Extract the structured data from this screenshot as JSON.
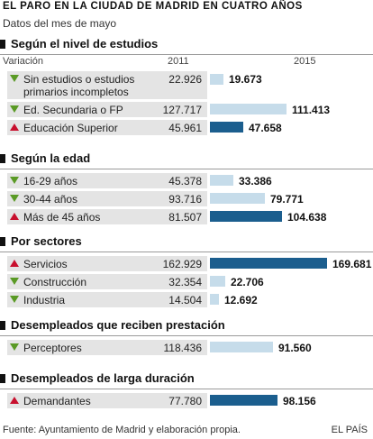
{
  "title": "EL PARO EN LA CIUDAD DE MADRID EN CUATRO AÑOS",
  "subtitle": "Datos del mes de mayo",
  "columns": {
    "variation": "Variación",
    "year1": "2011",
    "year2": "2015"
  },
  "colors": {
    "bar_increase": "#1b5e8e",
    "bar_decrease": "#c6dcea",
    "row_bg": "#e4e4e4",
    "down": "#5a9a25",
    "up": "#c8102e"
  },
  "chart_data": {
    "type": "bar",
    "scale_max": 169681,
    "sections": [
      {
        "label": "Según el nivel de estudios",
        "rows": [
          {
            "name": "Sin estudios o estudios primarios incompletos",
            "trend": "down",
            "v2011_label": "22.926",
            "v2015_label": "19.673",
            "v2011": 22926,
            "v2015": 19673
          },
          {
            "name": "Ed. Secundaria o FP",
            "trend": "down",
            "v2011_label": "127.717",
            "v2015_label": "111.413",
            "v2011": 127717,
            "v2015": 111413
          },
          {
            "name": "Educación Superior",
            "trend": "up",
            "v2011_label": "45.961",
            "v2015_label": "47.658",
            "v2011": 45961,
            "v2015": 47658
          }
        ]
      },
      {
        "label": "Según la edad",
        "rows": [
          {
            "name": "16-29 años",
            "trend": "down",
            "v2011_label": "45.378",
            "v2015_label": "33.386",
            "v2011": 45378,
            "v2015": 33386
          },
          {
            "name": "30-44 años",
            "trend": "down",
            "v2011_label": "93.716",
            "v2015_label": "79.771",
            "v2011": 93716,
            "v2015": 79771
          },
          {
            "name": "Más de 45 años",
            "trend": "up",
            "v2011_label": "81.507",
            "v2015_label": "104.638",
            "v2011": 81507,
            "v2015": 104638
          }
        ]
      },
      {
        "label": "Por sectores",
        "rows": [
          {
            "name": "Servicios",
            "trend": "up",
            "v2011_label": "162.929",
            "v2015_label": "169.681",
            "v2011": 162929,
            "v2015": 169681
          },
          {
            "name": "Construcción",
            "trend": "down",
            "v2011_label": "32.354",
            "v2015_label": "22.706",
            "v2011": 32354,
            "v2015": 22706
          },
          {
            "name": "Industria",
            "trend": "down",
            "v2011_label": "14.504",
            "v2015_label": "12.692",
            "v2011": 14504,
            "v2015": 12692
          }
        ]
      },
      {
        "label": "Desempleados que reciben prestación",
        "rows": [
          {
            "name": "Perceptores",
            "trend": "down",
            "v2011_label": "118.436",
            "v2015_label": "91.560",
            "v2011": 118436,
            "v2015": 91560
          }
        ]
      },
      {
        "label": "Desempleados de larga duración",
        "rows": [
          {
            "name": "Demandantes",
            "trend": "up",
            "v2011_label": "77.780",
            "v2015_label": "98.156",
            "v2011": 77780,
            "v2015": 98156
          }
        ]
      }
    ]
  },
  "footer": {
    "source": "Fuente: Ayuntamiento de Madrid y elaboración propia.",
    "brand": "EL PAÍS"
  }
}
